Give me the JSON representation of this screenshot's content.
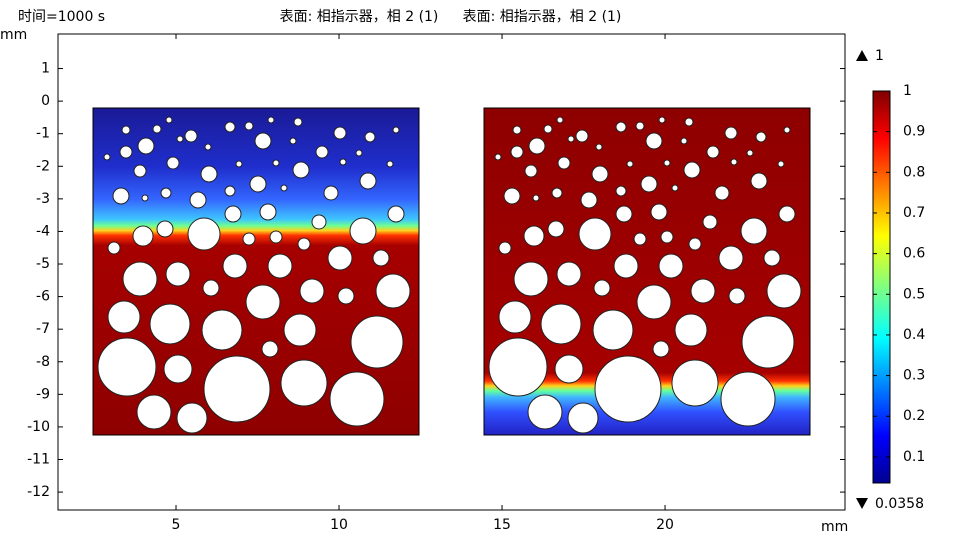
{
  "time_label": "时间=1000 s",
  "titles": [
    "表面: 相指示器，相 2 (1)",
    "表面: 相指示器，相 2 (1)"
  ],
  "chart_data": {
    "type": "heatmap",
    "x_unit": "mm",
    "y_unit": "mm",
    "xlim": [
      1.38,
      25.52
    ],
    "xticks": [
      5,
      10,
      15,
      20
    ],
    "ylim": [
      -12.55,
      2.06
    ],
    "yticks": [
      1,
      0,
      -1,
      -2,
      -3,
      -4,
      -5,
      -6,
      -7,
      -8,
      -9,
      -10,
      -11,
      -12
    ],
    "colormap": "jet",
    "clim": [
      0.0358,
      1
    ],
    "cticks": [
      0.1,
      0.2,
      0.3,
      0.4,
      0.5,
      0.6,
      0.7,
      0.8,
      0.9,
      1
    ]
  }
}
